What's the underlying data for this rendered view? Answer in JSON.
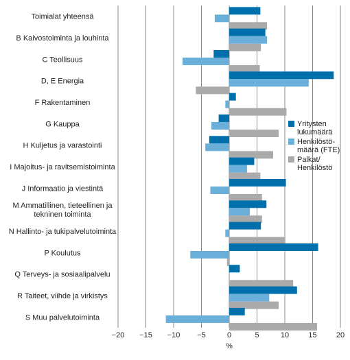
{
  "chart_data": {
    "type": "bar",
    "orientation": "horizontal",
    "categories": [
      [
        "Toimialat yhteensä"
      ],
      [
        "B Kaivostoiminta ja louhinta"
      ],
      [
        "C Teollisuus"
      ],
      [
        "D, E Energia"
      ],
      [
        "F Rakentaminen"
      ],
      [
        "G Kauppa"
      ],
      [
        "H Kuljetus ja varastointi"
      ],
      [
        "I Majoitus- ja ravitsemistoiminta"
      ],
      [
        "J Informaatio ja viestintä"
      ],
      [
        "M Ammatillinen, tieteellinen ja",
        "tekninen toiminta"
      ],
      [
        "N Hallinto- ja tukipalvelutoiminta"
      ],
      [
        "P Koulutus"
      ],
      [
        "Q Terveys- ja sosiaalipalvelu"
      ],
      [
        "R Taiteet, viihde ja virkistys"
      ],
      [
        "S Muu palvelutoiminta"
      ]
    ],
    "series": [
      {
        "name": [
          "Yritysten",
          "lukumäärä"
        ],
        "color": "#0070ad",
        "values": [
          5.6,
          6.5,
          -2.8,
          18.8,
          1.2,
          -1.9,
          -3.6,
          4.5,
          10.2,
          6.7,
          5.7,
          16.0,
          1.9,
          12.2,
          2.8
        ]
      },
      {
        "name": [
          "Henkilöstö-",
          "määrä (FTE)"
        ],
        "color": "#6aafd9",
        "values": [
          -2.6,
          6.8,
          -8.4,
          14.3,
          -0.7,
          -3.2,
          -4.3,
          3.2,
          -3.4,
          3.7,
          -0.7,
          -7.0,
          0.0,
          7.2,
          -11.4
        ]
      },
      {
        "name": [
          "Palkat/",
          "Henkilöstö"
        ],
        "color": "#aaaaaa",
        "values": [
          6.8,
          5.7,
          5.5,
          -6.0,
          10.3,
          8.9,
          7.9,
          5.6,
          5.9,
          5.9,
          10.1,
          -0.4,
          11.5,
          8.9,
          15.8
        ]
      }
    ],
    "xlim": [
      -20,
      20
    ],
    "xticks": [
      -20,
      -15,
      -10,
      -5,
      0,
      5,
      10,
      15,
      20
    ],
    "xlabel": "%",
    "grid": "vertical",
    "legend": "right"
  }
}
